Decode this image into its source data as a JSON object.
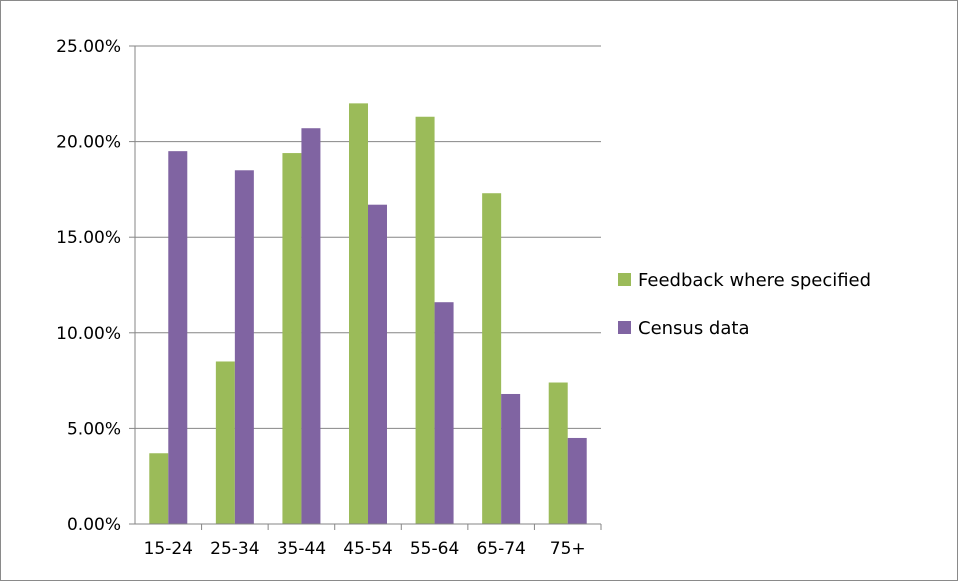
{
  "chart_data": {
    "type": "bar",
    "title": "",
    "xlabel": "",
    "ylabel": "",
    "categories": [
      "15-24",
      "25-34",
      "35-44",
      "45-54",
      "55-64",
      "65-74",
      "75+"
    ],
    "series": [
      {
        "name": "Feedback where specified",
        "color": "#9bbb59",
        "values": [
          0.037,
          0.085,
          0.194,
          0.22,
          0.213,
          0.173,
          0.074
        ]
      },
      {
        "name": "Census data",
        "color": "#8064a2",
        "values": [
          0.195,
          0.185,
          0.207,
          0.167,
          0.116,
          0.068,
          0.045
        ]
      }
    ],
    "ylim": [
      0,
      0.25
    ],
    "yticks": [
      "0.00%",
      "5.00%",
      "10.00%",
      "15.00%",
      "20.00%",
      "25.00%"
    ],
    "ytick_values": [
      0,
      0.05,
      0.1,
      0.15,
      0.2,
      0.25
    ],
    "grid": true,
    "legend_position": "right"
  }
}
